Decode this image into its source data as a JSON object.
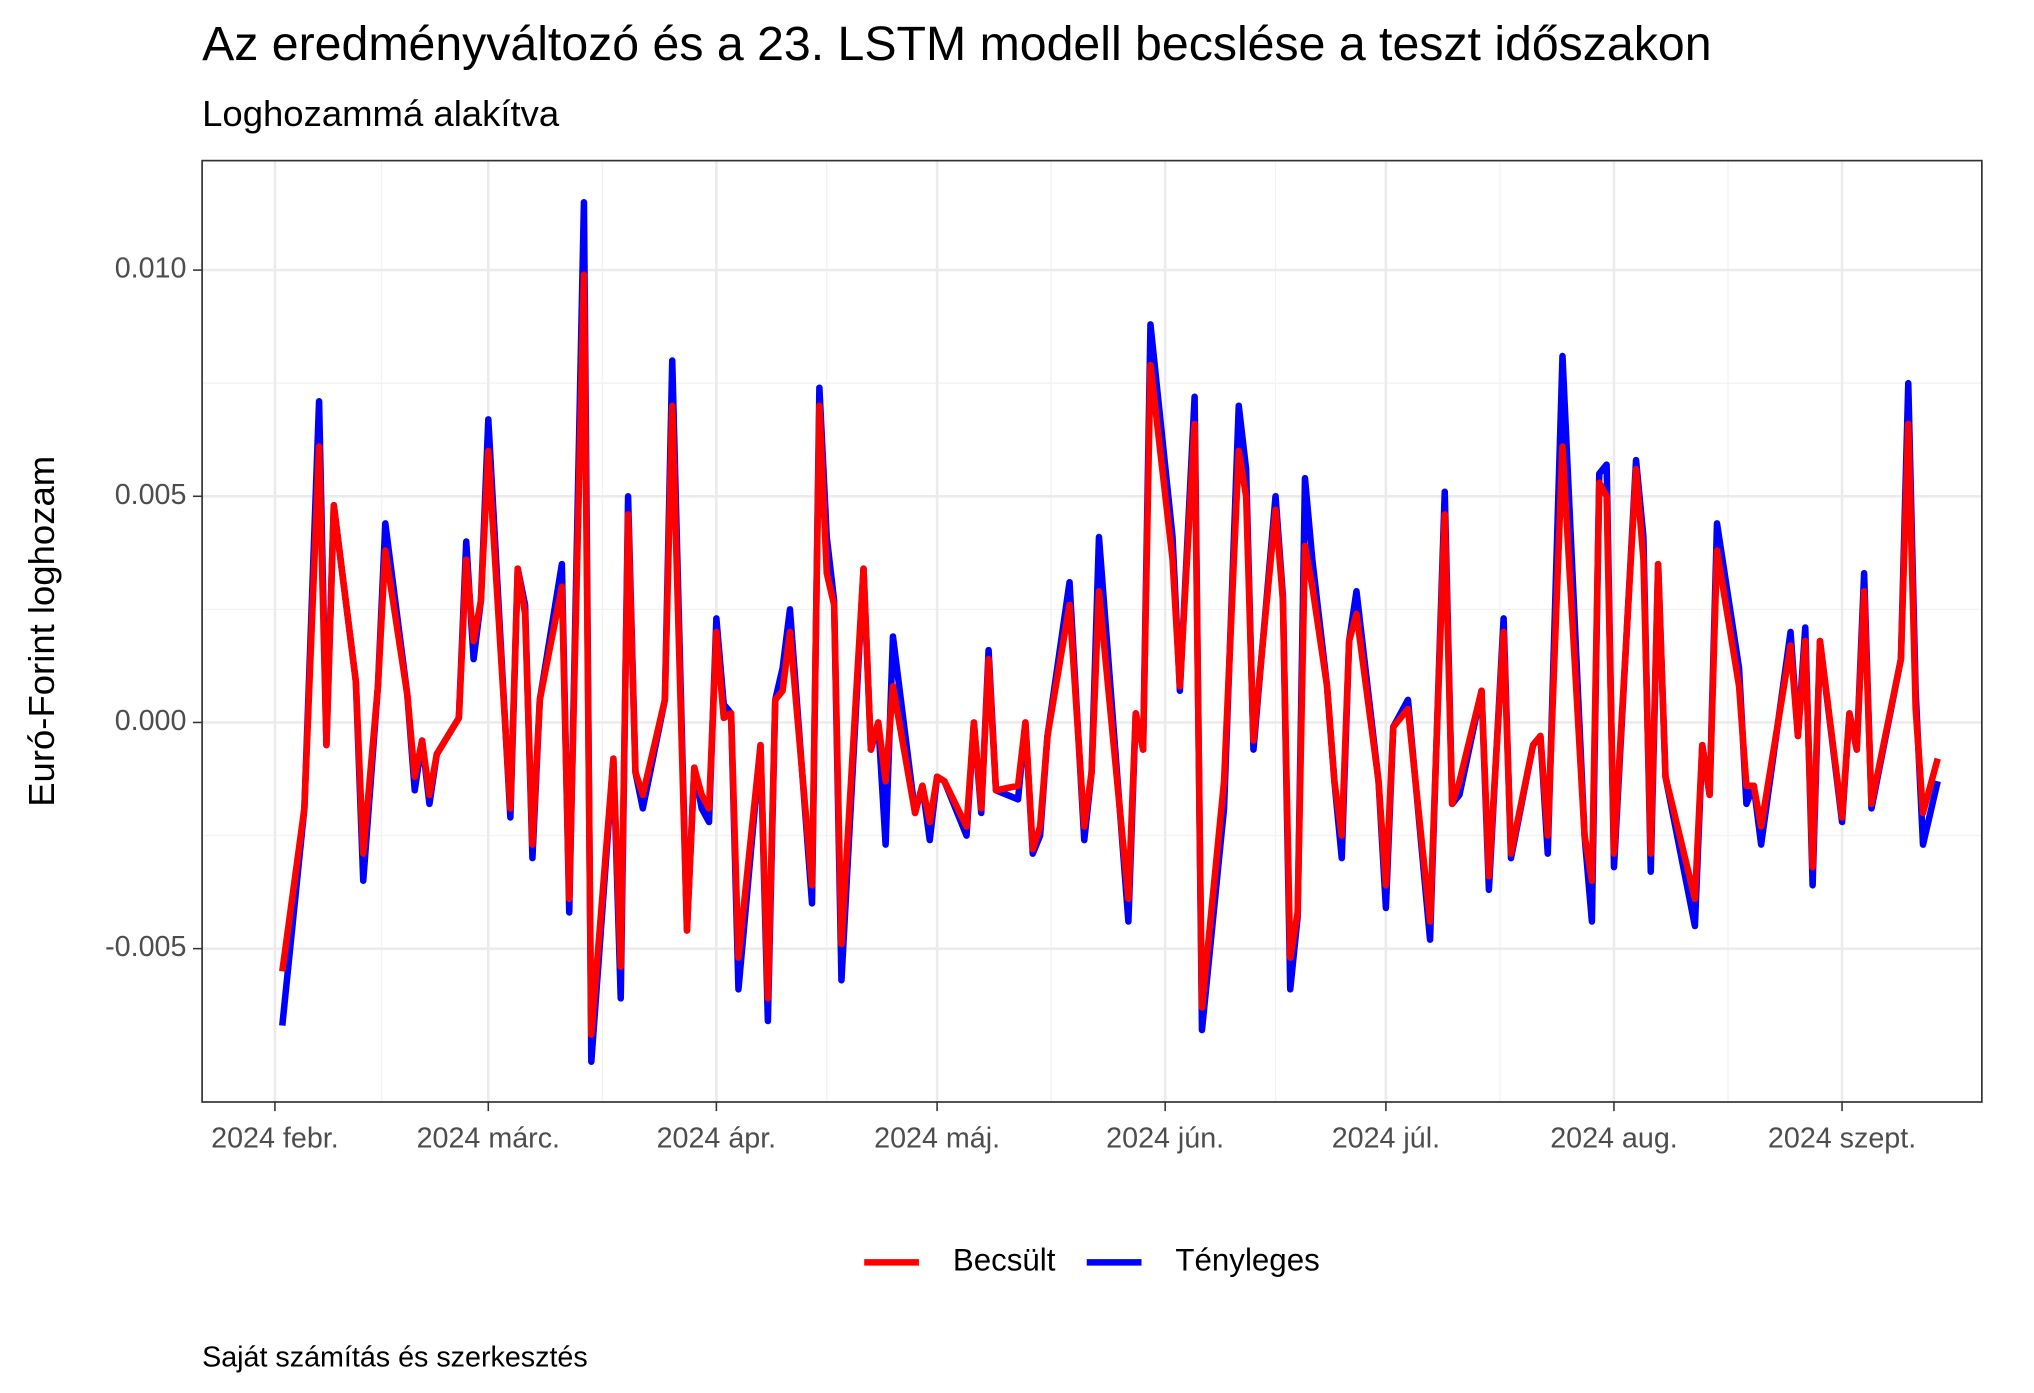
{
  "chart_data": {
    "type": "line",
    "title": "Az eredményváltozó és a 23. LSTM modell becslése a teszt időszakon",
    "subtitle": "Loghozammá alakítva",
    "y_label": "Euró-Forint loghozam",
    "caption": "Saját számítás és szerkesztés",
    "x": [
      33,
      36,
      38,
      39,
      40,
      43,
      44,
      46,
      47,
      50,
      51,
      52,
      53,
      54,
      57,
      58,
      59,
      60,
      61,
      64,
      65,
      66,
      67,
      68,
      71,
      72,
      74,
      75,
      78,
      79,
      80,
      81,
      82,
      85,
      86,
      88,
      89,
      90,
      91,
      92,
      93,
      94,
      95,
      98,
      99,
      100,
      101,
      102,
      105,
      106,
      107,
      108,
      109,
      112,
      113,
      114,
      115,
      116,
      119,
      120,
      121,
      122,
      123,
      126,
      127,
      128,
      129,
      130,
      133,
      134,
      135,
      136,
      137,
      140,
      142,
      143,
      144,
      148,
      149,
      150,
      151,
      154,
      155,
      157,
      158,
      161,
      163,
      164,
      165,
      168,
      169,
      170,
      171,
      172,
      173,
      175,
      176,
      177,
      178,
      179,
      182,
      183,
      184,
      186,
      189,
      191,
      192,
      193,
      196,
      197,
      199,
      200,
      203,
      204,
      205,
      207,
      210,
      211,
      212,
      213,
      214,
      217,
      218,
      219,
      220,
      221,
      225,
      226,
      227,
      228,
      231,
      232,
      233,
      234,
      238,
      239,
      240,
      241,
      242,
      245,
      246,
      247,
      248,
      249,
      253,
      254,
      255,
      256,
      258
    ],
    "series": [
      {
        "name": "Becsült",
        "color": "#ff0000",
        "values": [
          -0.0055,
          -0.0019,
          0.0061,
          -0.0005,
          0.0048,
          0.0009,
          -0.0029,
          0.0008,
          0.0038,
          0.0006,
          -0.0012,
          -0.0004,
          -0.0016,
          -0.0007,
          0.0001,
          0.0036,
          0.0018,
          0.0027,
          0.006,
          -0.0019,
          0.0034,
          0.0024,
          -0.0027,
          0.0005,
          0.003,
          -0.0039,
          0.0099,
          -0.0069,
          -0.0008,
          -0.0054,
          0.0046,
          -0.0011,
          -0.0016,
          0.0005,
          0.007,
          -0.0046,
          -0.001,
          -0.0016,
          -0.0019,
          0.002,
          0.0001,
          0.0002,
          -0.0052,
          -0.0005,
          -0.0061,
          0.0005,
          0.0007,
          0.002,
          -0.0036,
          0.007,
          0.0033,
          0.0026,
          -0.0049,
          0.0034,
          -0.0006,
          0.0,
          -0.0013,
          0.0008,
          -0.002,
          -0.0014,
          -0.0022,
          -0.0012,
          -0.0013,
          -0.0023,
          0.0,
          -0.0019,
          0.0014,
          -0.0015,
          -0.0014,
          0.0,
          -0.0028,
          -0.0023,
          -0.0003,
          0.0026,
          -0.0023,
          -0.0011,
          0.0029,
          -0.0039,
          0.0002,
          -0.0006,
          0.0079,
          0.0036,
          0.0008,
          0.0066,
          -0.0063,
          -0.0013,
          0.006,
          0.005,
          -0.0004,
          0.0047,
          0.0027,
          -0.0052,
          -0.0042,
          0.0039,
          0.003,
          0.0008,
          -0.0013,
          -0.0025,
          0.0018,
          0.0024,
          -0.0013,
          -0.0036,
          -0.0001,
          0.0003,
          -0.0044,
          0.0046,
          -0.0018,
          -0.0013,
          0.0007,
          -0.0034,
          0.002,
          -0.0029,
          -0.0005,
          -0.0003,
          -0.0025,
          0.0061,
          -0.0025,
          -0.0035,
          0.0053,
          0.005,
          -0.0029,
          0.0056,
          0.0036,
          -0.0029,
          0.0035,
          -0.0012,
          -0.0039,
          -0.0005,
          -0.0016,
          0.0038,
          0.0008,
          -0.0014,
          -0.0014,
          -0.0023,
          0.0017,
          -0.0003,
          0.0018,
          -0.0032,
          0.0018,
          -0.0021,
          0.0002,
          -0.0006,
          0.0029,
          -0.0018,
          0.0014,
          0.0066,
          0.0003,
          -0.002,
          -0.0008
        ]
      },
      {
        "name": "Tényleges",
        "color": "#0000ff",
        "values": [
          -0.0067,
          -0.0019,
          0.0071,
          -0.0005,
          0.0048,
          0.0009,
          -0.0035,
          0.0008,
          0.0044,
          0.0006,
          -0.0015,
          -0.0004,
          -0.0018,
          -0.0007,
          0.0001,
          0.004,
          0.0014,
          0.0027,
          0.0067,
          -0.0021,
          0.0034,
          0.0026,
          -0.003,
          0.0005,
          0.0035,
          -0.0042,
          0.0115,
          -0.0075,
          -0.0008,
          -0.0061,
          0.005,
          -0.0011,
          -0.0019,
          0.0005,
          0.008,
          -0.0046,
          -0.001,
          -0.0019,
          -0.0022,
          0.0023,
          0.0004,
          0.0002,
          -0.0059,
          -0.0005,
          -0.0066,
          0.0005,
          0.0012,
          0.0025,
          -0.004,
          0.0074,
          0.0041,
          0.0027,
          -0.0057,
          0.0034,
          -0.0006,
          0.0,
          -0.0027,
          0.0019,
          -0.002,
          -0.0014,
          -0.0026,
          -0.0012,
          -0.0013,
          -0.0025,
          0.0,
          -0.002,
          0.0016,
          -0.0015,
          -0.0017,
          0.0,
          -0.0029,
          -0.0025,
          -0.0003,
          0.0031,
          -0.0026,
          -0.0011,
          0.0041,
          -0.0044,
          0.0002,
          -0.0006,
          0.0088,
          0.0041,
          0.0007,
          0.0072,
          -0.0068,
          -0.0019,
          0.007,
          0.0056,
          -0.0006,
          0.005,
          0.0028,
          -0.0059,
          -0.0043,
          0.0054,
          0.0036,
          0.0008,
          -0.0013,
          -0.003,
          0.0018,
          0.0029,
          -0.0013,
          -0.0041,
          -0.0001,
          0.0005,
          -0.0048,
          0.0051,
          -0.0018,
          -0.0016,
          0.0007,
          -0.0037,
          0.0023,
          -0.003,
          -0.0005,
          -0.0003,
          -0.0029,
          0.0081,
          -0.0025,
          -0.0044,
          0.0055,
          0.0057,
          -0.0032,
          0.0058,
          0.0041,
          -0.0033,
          0.0035,
          -0.0012,
          -0.0045,
          -0.0005,
          -0.0016,
          0.0044,
          0.0012,
          -0.0018,
          -0.0014,
          -0.0027,
          0.002,
          -0.0003,
          0.0021,
          -0.0036,
          0.0018,
          -0.0022,
          0.0002,
          -0.0006,
          0.0033,
          -0.0019,
          0.0014,
          0.0075,
          0.0007,
          -0.0027,
          -0.0013
        ]
      }
    ],
    "xlim": [
      22.1,
      264.0
    ],
    "xticks": [
      {
        "value": 32,
        "label": "2024 febr."
      },
      {
        "value": 61,
        "label": "2024 márc."
      },
      {
        "value": 92,
        "label": "2024 ápr."
      },
      {
        "value": 122,
        "label": "2024 máj."
      },
      {
        "value": 153,
        "label": "2024 jún."
      },
      {
        "value": 183,
        "label": "2024 júl."
      },
      {
        "value": 214,
        "label": "2024 aug."
      },
      {
        "value": 245,
        "label": "2024 szept."
      }
    ],
    "ylim": [
      -0.00839,
      0.01242
    ],
    "yticks": [
      {
        "value": -0.005,
        "label": "-0.005"
      },
      {
        "value": 0,
        "label": "0.000"
      },
      {
        "value": 0.005,
        "label": "0.005"
      },
      {
        "value": 0.01,
        "label": "0.010"
      }
    ],
    "grid": true,
    "legend": "bottom"
  }
}
